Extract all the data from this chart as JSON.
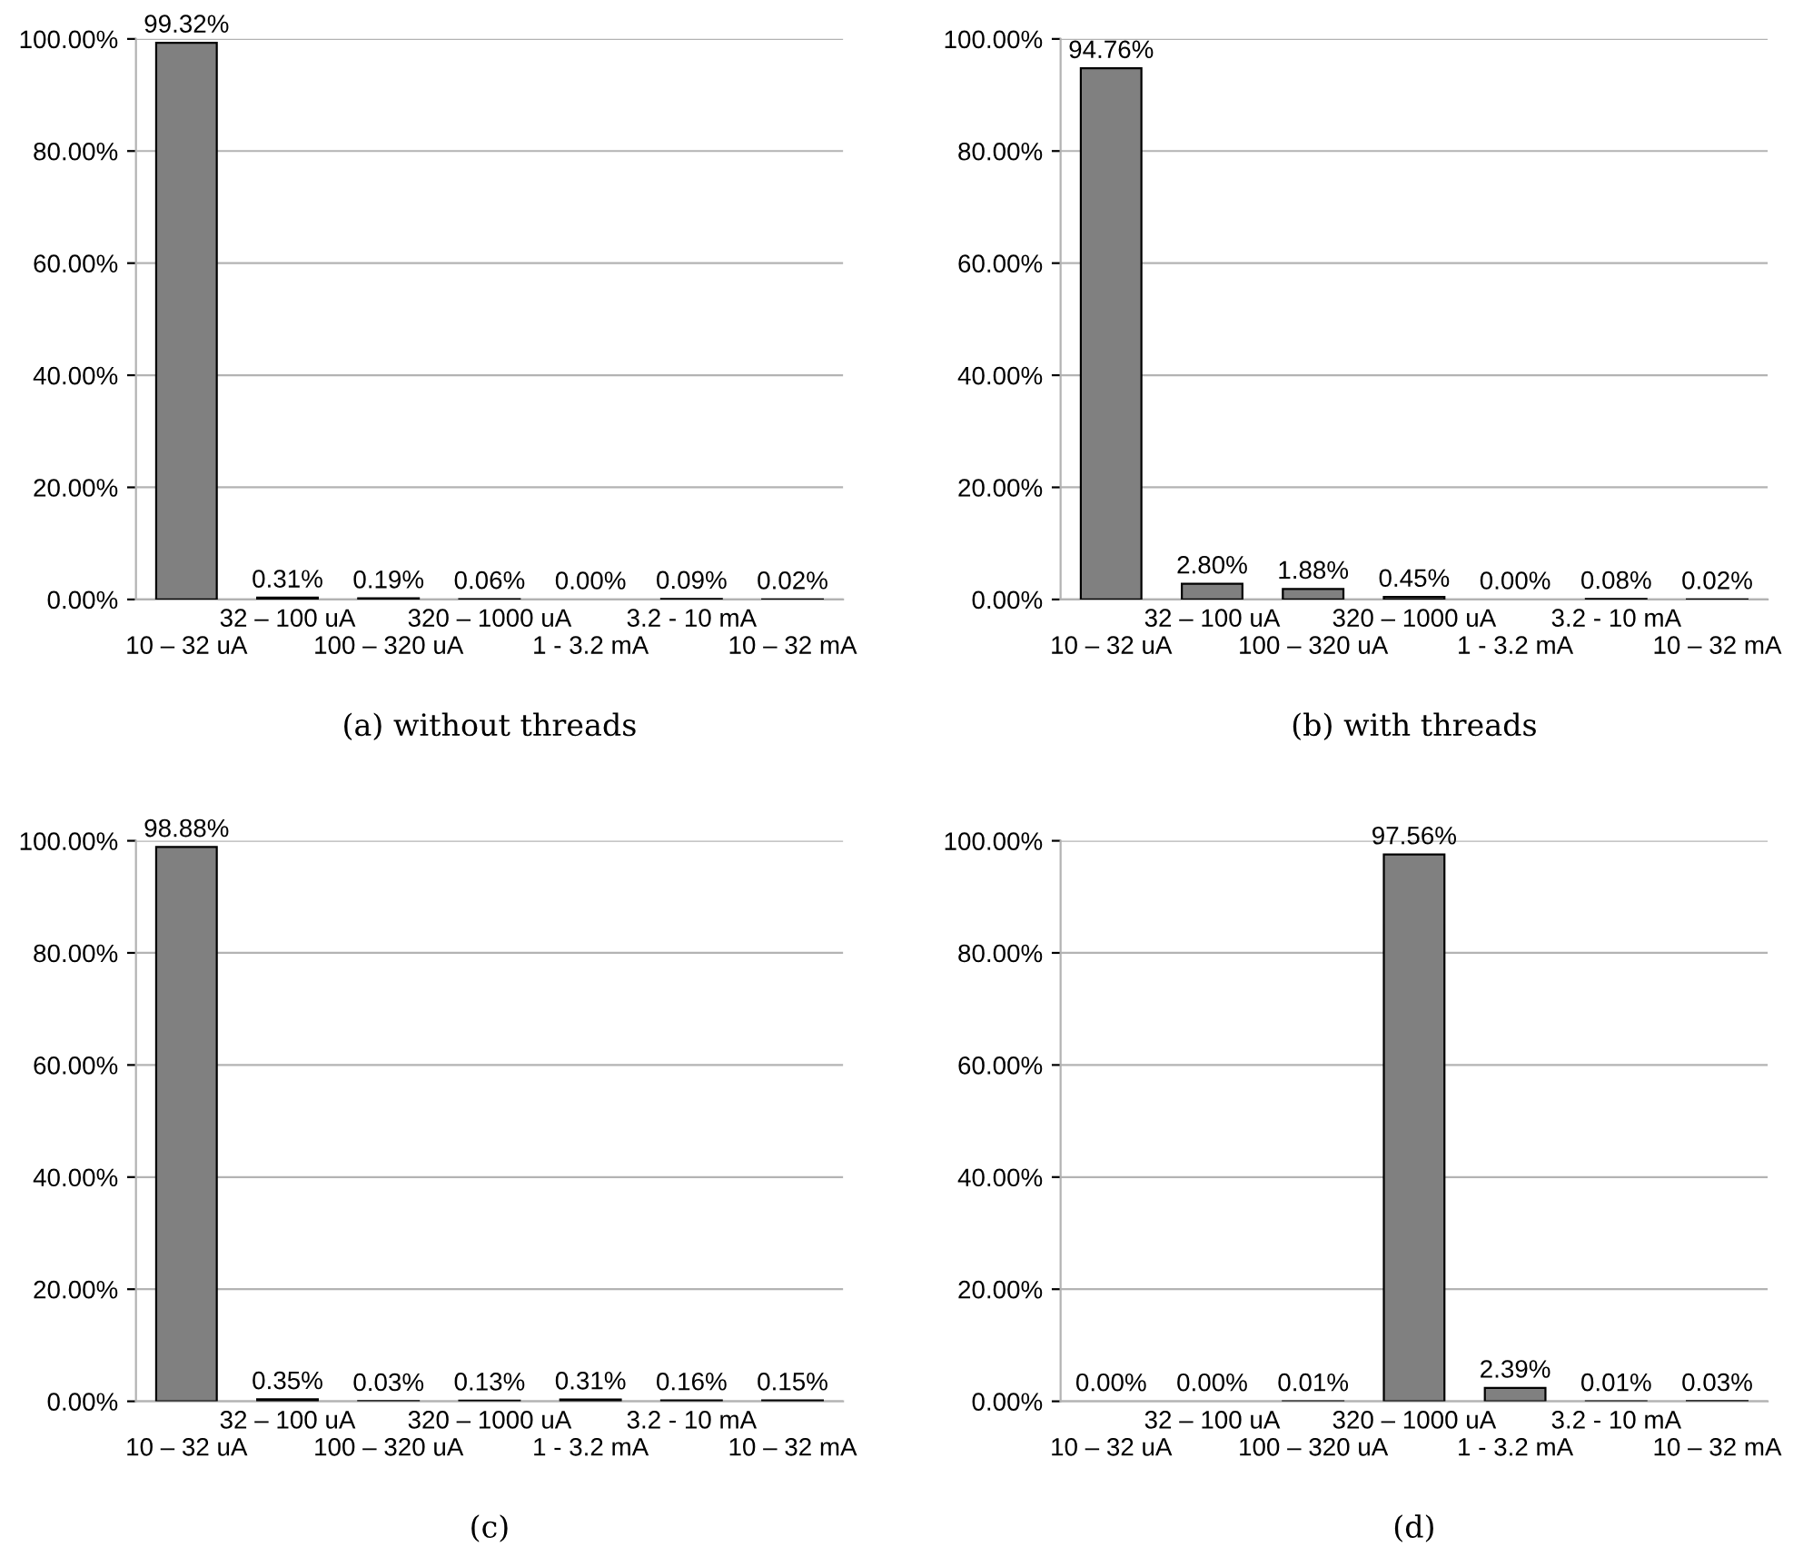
{
  "chart_data": [
    {
      "type": "bar",
      "title": "(a) without threads",
      "categories": [
        "10 – 32 uA",
        "32 – 100 uA",
        "100 – 320 uA",
        "320 – 1000 uA",
        "1 - 3.2 mA",
        "3.2 - 10 mA",
        "10 – 32 mA"
      ],
      "values": [
        99.32,
        0.31,
        0.19,
        0.06,
        0.0,
        0.09,
        0.02
      ],
      "value_labels": [
        "99.32%",
        "0.31%",
        "0.19%",
        "0.06%",
        "0.00%",
        "0.09%",
        "0.02%"
      ],
      "color": "#808080",
      "ylim": [
        0,
        100
      ],
      "yticks": [
        {
          "value": 0,
          "label": "0.00%"
        },
        {
          "value": 20,
          "label": "20.00%"
        },
        {
          "value": 40,
          "label": "40.00%"
        },
        {
          "value": 60,
          "label": "60.00%"
        },
        {
          "value": 80,
          "label": "80.00%"
        },
        {
          "value": 100,
          "label": "100.00%"
        }
      ],
      "grid": "y"
    },
    {
      "type": "bar",
      "title": "(b) with threads",
      "categories": [
        "10 – 32 uA",
        "32 – 100 uA",
        "100 – 320 uA",
        "320 – 1000 uA",
        "1 - 3.2 mA",
        "3.2 - 10 mA",
        "10 – 32 mA"
      ],
      "values": [
        94.76,
        2.8,
        1.88,
        0.45,
        0.0,
        0.08,
        0.02
      ],
      "value_labels": [
        "94.76%",
        "2.80%",
        "1.88%",
        "0.45%",
        "0.00%",
        "0.08%",
        "0.02%"
      ],
      "color": "#808080",
      "ylim": [
        0,
        100
      ],
      "yticks": [
        {
          "value": 0,
          "label": "0.00%"
        },
        {
          "value": 20,
          "label": "20.00%"
        },
        {
          "value": 40,
          "label": "40.00%"
        },
        {
          "value": 60,
          "label": "60.00%"
        },
        {
          "value": 80,
          "label": "80.00%"
        },
        {
          "value": 100,
          "label": "100.00%"
        }
      ],
      "grid": "y"
    },
    {
      "type": "bar",
      "title": "(c)",
      "categories": [
        "10 – 32 uA",
        "32 – 100 uA",
        "100 – 320 uA",
        "320 – 1000 uA",
        "1 - 3.2 mA",
        "3.2 - 10 mA",
        "10 – 32 mA"
      ],
      "values": [
        98.88,
        0.35,
        0.03,
        0.13,
        0.31,
        0.16,
        0.15
      ],
      "value_labels": [
        "98.88%",
        "0.35%",
        "0.03%",
        "0.13%",
        "0.31%",
        "0.16%",
        "0.15%"
      ],
      "color": "#808080",
      "ylim": [
        0,
        100
      ],
      "yticks": [
        {
          "value": 0,
          "label": "0.00%"
        },
        {
          "value": 20,
          "label": "20.00%"
        },
        {
          "value": 40,
          "label": "40.00%"
        },
        {
          "value": 60,
          "label": "60.00%"
        },
        {
          "value": 80,
          "label": "80.00%"
        },
        {
          "value": 100,
          "label": "100.00%"
        }
      ],
      "grid": "y"
    },
    {
      "type": "bar",
      "title": "(d)",
      "categories": [
        "10 – 32 uA",
        "32 – 100 uA",
        "100 – 320 uA",
        "320 – 1000 uA",
        "1 - 3.2 mA",
        "3.2 - 10 mA",
        "10 – 32 mA"
      ],
      "values": [
        0.0,
        0.0,
        0.01,
        97.56,
        2.39,
        0.01,
        0.03
      ],
      "value_labels": [
        "0.00%",
        "0.00%",
        "0.01%",
        "97.56%",
        "2.39%",
        "0.01%",
        "0.03%"
      ],
      "color": "#808080",
      "ylim": [
        0,
        100
      ],
      "yticks": [
        {
          "value": 0,
          "label": "0.00%"
        },
        {
          "value": 20,
          "label": "20.00%"
        },
        {
          "value": 40,
          "label": "40.00%"
        },
        {
          "value": 60,
          "label": "60.00%"
        },
        {
          "value": 80,
          "label": "80.00%"
        },
        {
          "value": 100,
          "label": "100.00%"
        }
      ],
      "grid": "y"
    }
  ]
}
